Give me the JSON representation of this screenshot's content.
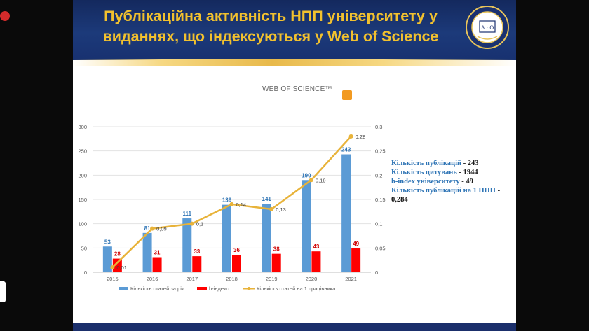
{
  "title": "Публікаційна активність НПП університету у виданнях, що індексуються у Web of Science",
  "logo_text": "WEB OF SCIENCE™",
  "emblem_text": "А · О",
  "chart_data": {
    "type": "bar",
    "categories": [
      "2015",
      "2016",
      "2017",
      "2018",
      "2019",
      "2020",
      "2021"
    ],
    "series": [
      {
        "name": "Кількість статей за рік",
        "type": "bar",
        "axis": "left",
        "color": "#5b9bd5",
        "values": [
          53,
          81,
          111,
          139,
          141,
          190,
          243
        ],
        "labels": [
          "53",
          "81",
          "111",
          "139",
          "141",
          "190",
          "243"
        ]
      },
      {
        "name": "h-індекс",
        "type": "bar",
        "axis": "left",
        "color": "#ff0000",
        "values": [
          28,
          31,
          33,
          36,
          38,
          43,
          49
        ],
        "labels": [
          "28",
          "31",
          "33",
          "36",
          "38",
          "43",
          "49"
        ]
      },
      {
        "name": "Кількість статей на 1 працівника",
        "type": "line",
        "axis": "right",
        "color": "#e8b33a",
        "values": [
          0.01,
          0.09,
          0.1,
          0.14,
          0.13,
          0.19,
          0.28
        ],
        "labels": [
          "0,01",
          "0,09",
          "0,1",
          "0,14",
          "0,13",
          "0,19",
          "0,28"
        ]
      }
    ],
    "ylim": [
      0,
      300
    ],
    "y2lim": [
      0,
      0.3
    ],
    "yticks": [
      "0",
      "50",
      "100",
      "150",
      "200",
      "250",
      "300"
    ],
    "y2ticks": [
      "0",
      "0,05",
      "0,1",
      "0,15",
      "0,2",
      "0,25",
      "0,3"
    ],
    "grid": true,
    "legend": "bottom"
  },
  "stats": [
    {
      "label": "Кількість публікацій",
      "value": " - 243"
    },
    {
      "label": "Кількість цитувань",
      "value": " - 1944"
    },
    {
      "label": "h-index університету",
      "value": " - 49"
    },
    {
      "label": "Кількість публікацій на 1 НПП",
      "value": " -"
    },
    {
      "label": "",
      "value": "0,284"
    }
  ]
}
